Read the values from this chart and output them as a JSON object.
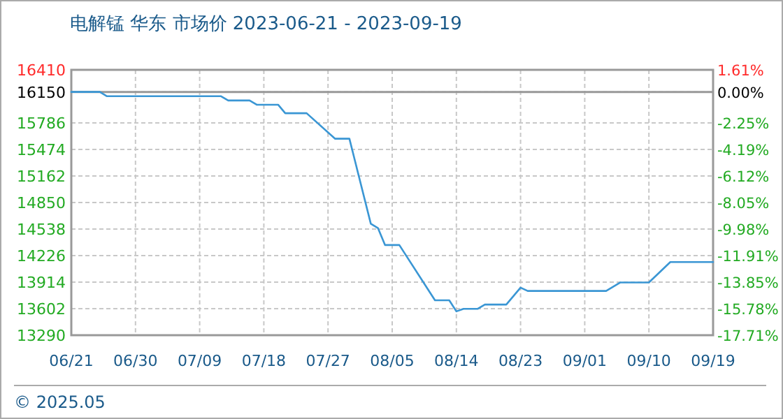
{
  "chart_data": {
    "type": "line",
    "title": "电解锰 华东 市场价 2023-06-21 - 2023-09-19",
    "x": [
      "2023-06-21",
      "2023-06-25",
      "2023-06-26",
      "2023-07-12",
      "2023-07-13",
      "2023-07-16",
      "2023-07-17",
      "2023-07-20",
      "2023-07-21",
      "2023-07-24",
      "2023-07-28",
      "2023-07-30",
      "2023-08-02",
      "2023-08-03",
      "2023-08-04",
      "2023-08-06",
      "2023-08-11",
      "2023-08-13",
      "2023-08-14",
      "2023-08-15",
      "2023-08-17",
      "2023-08-18",
      "2023-08-21",
      "2023-08-23",
      "2023-08-24",
      "2023-09-04",
      "2023-09-06",
      "2023-09-10",
      "2023-09-13",
      "2023-09-19"
    ],
    "series": [
      {
        "color": "#3a96d4",
        "values": [
          16150,
          16150,
          16100,
          16100,
          16050,
          16050,
          16000,
          16000,
          15900,
          15900,
          15600,
          15600,
          14600,
          14550,
          14350,
          14350,
          13700,
          13700,
          13570,
          13600,
          13600,
          13650,
          13650,
          13850,
          13810,
          13810,
          13910,
          13910,
          14150,
          14150
        ]
      }
    ],
    "xlim": [
      "2023-06-21",
      "2023-09-19"
    ],
    "xticks": [
      {
        "value": "2023-06-21",
        "label": "06/21"
      },
      {
        "value": "2023-06-30",
        "label": "06/30"
      },
      {
        "value": "2023-07-09",
        "label": "07/09"
      },
      {
        "value": "2023-07-18",
        "label": "07/18"
      },
      {
        "value": "2023-07-27",
        "label": "07/27"
      },
      {
        "value": "2023-08-05",
        "label": "08/05"
      },
      {
        "value": "2023-08-14",
        "label": "08/14"
      },
      {
        "value": "2023-08-23",
        "label": "08/23"
      },
      {
        "value": "2023-09-01",
        "label": "09/01"
      },
      {
        "value": "2023-09-10",
        "label": "09/10"
      },
      {
        "value": "2023-09-19",
        "label": "09/19"
      }
    ],
    "ylim": [
      13290,
      16410
    ],
    "yticks": [
      13290,
      13602,
      13914,
      14226,
      14538,
      14850,
      15162,
      15474,
      15786,
      16150,
      16410
    ],
    "y2lim": [
      -17.71,
      1.61
    ],
    "y2ticks": [
      {
        "value": -17.71,
        "label": "-17.71%"
      },
      {
        "value": -15.78,
        "label": "-15.78%"
      },
      {
        "value": -13.85,
        "label": "-13.85%"
      },
      {
        "value": -11.91,
        "label": "-11.91%"
      },
      {
        "value": -9.98,
        "label": "-9.98%"
      },
      {
        "value": -8.05,
        "label": "-8.05%"
      },
      {
        "value": -6.12,
        "label": "-6.12%"
      },
      {
        "value": -4.19,
        "label": "-4.19%"
      },
      {
        "value": -2.25,
        "label": "-2.25%"
      },
      {
        "value": 0,
        "label": "0.00%"
      },
      {
        "value": 1.61,
        "label": "1.61%"
      }
    ],
    "ref_lines": [
      {
        "axis": "y",
        "value": 16150,
        "color": "#999999"
      }
    ],
    "grid": true,
    "annotations": [
      "© 2025.05"
    ]
  }
}
